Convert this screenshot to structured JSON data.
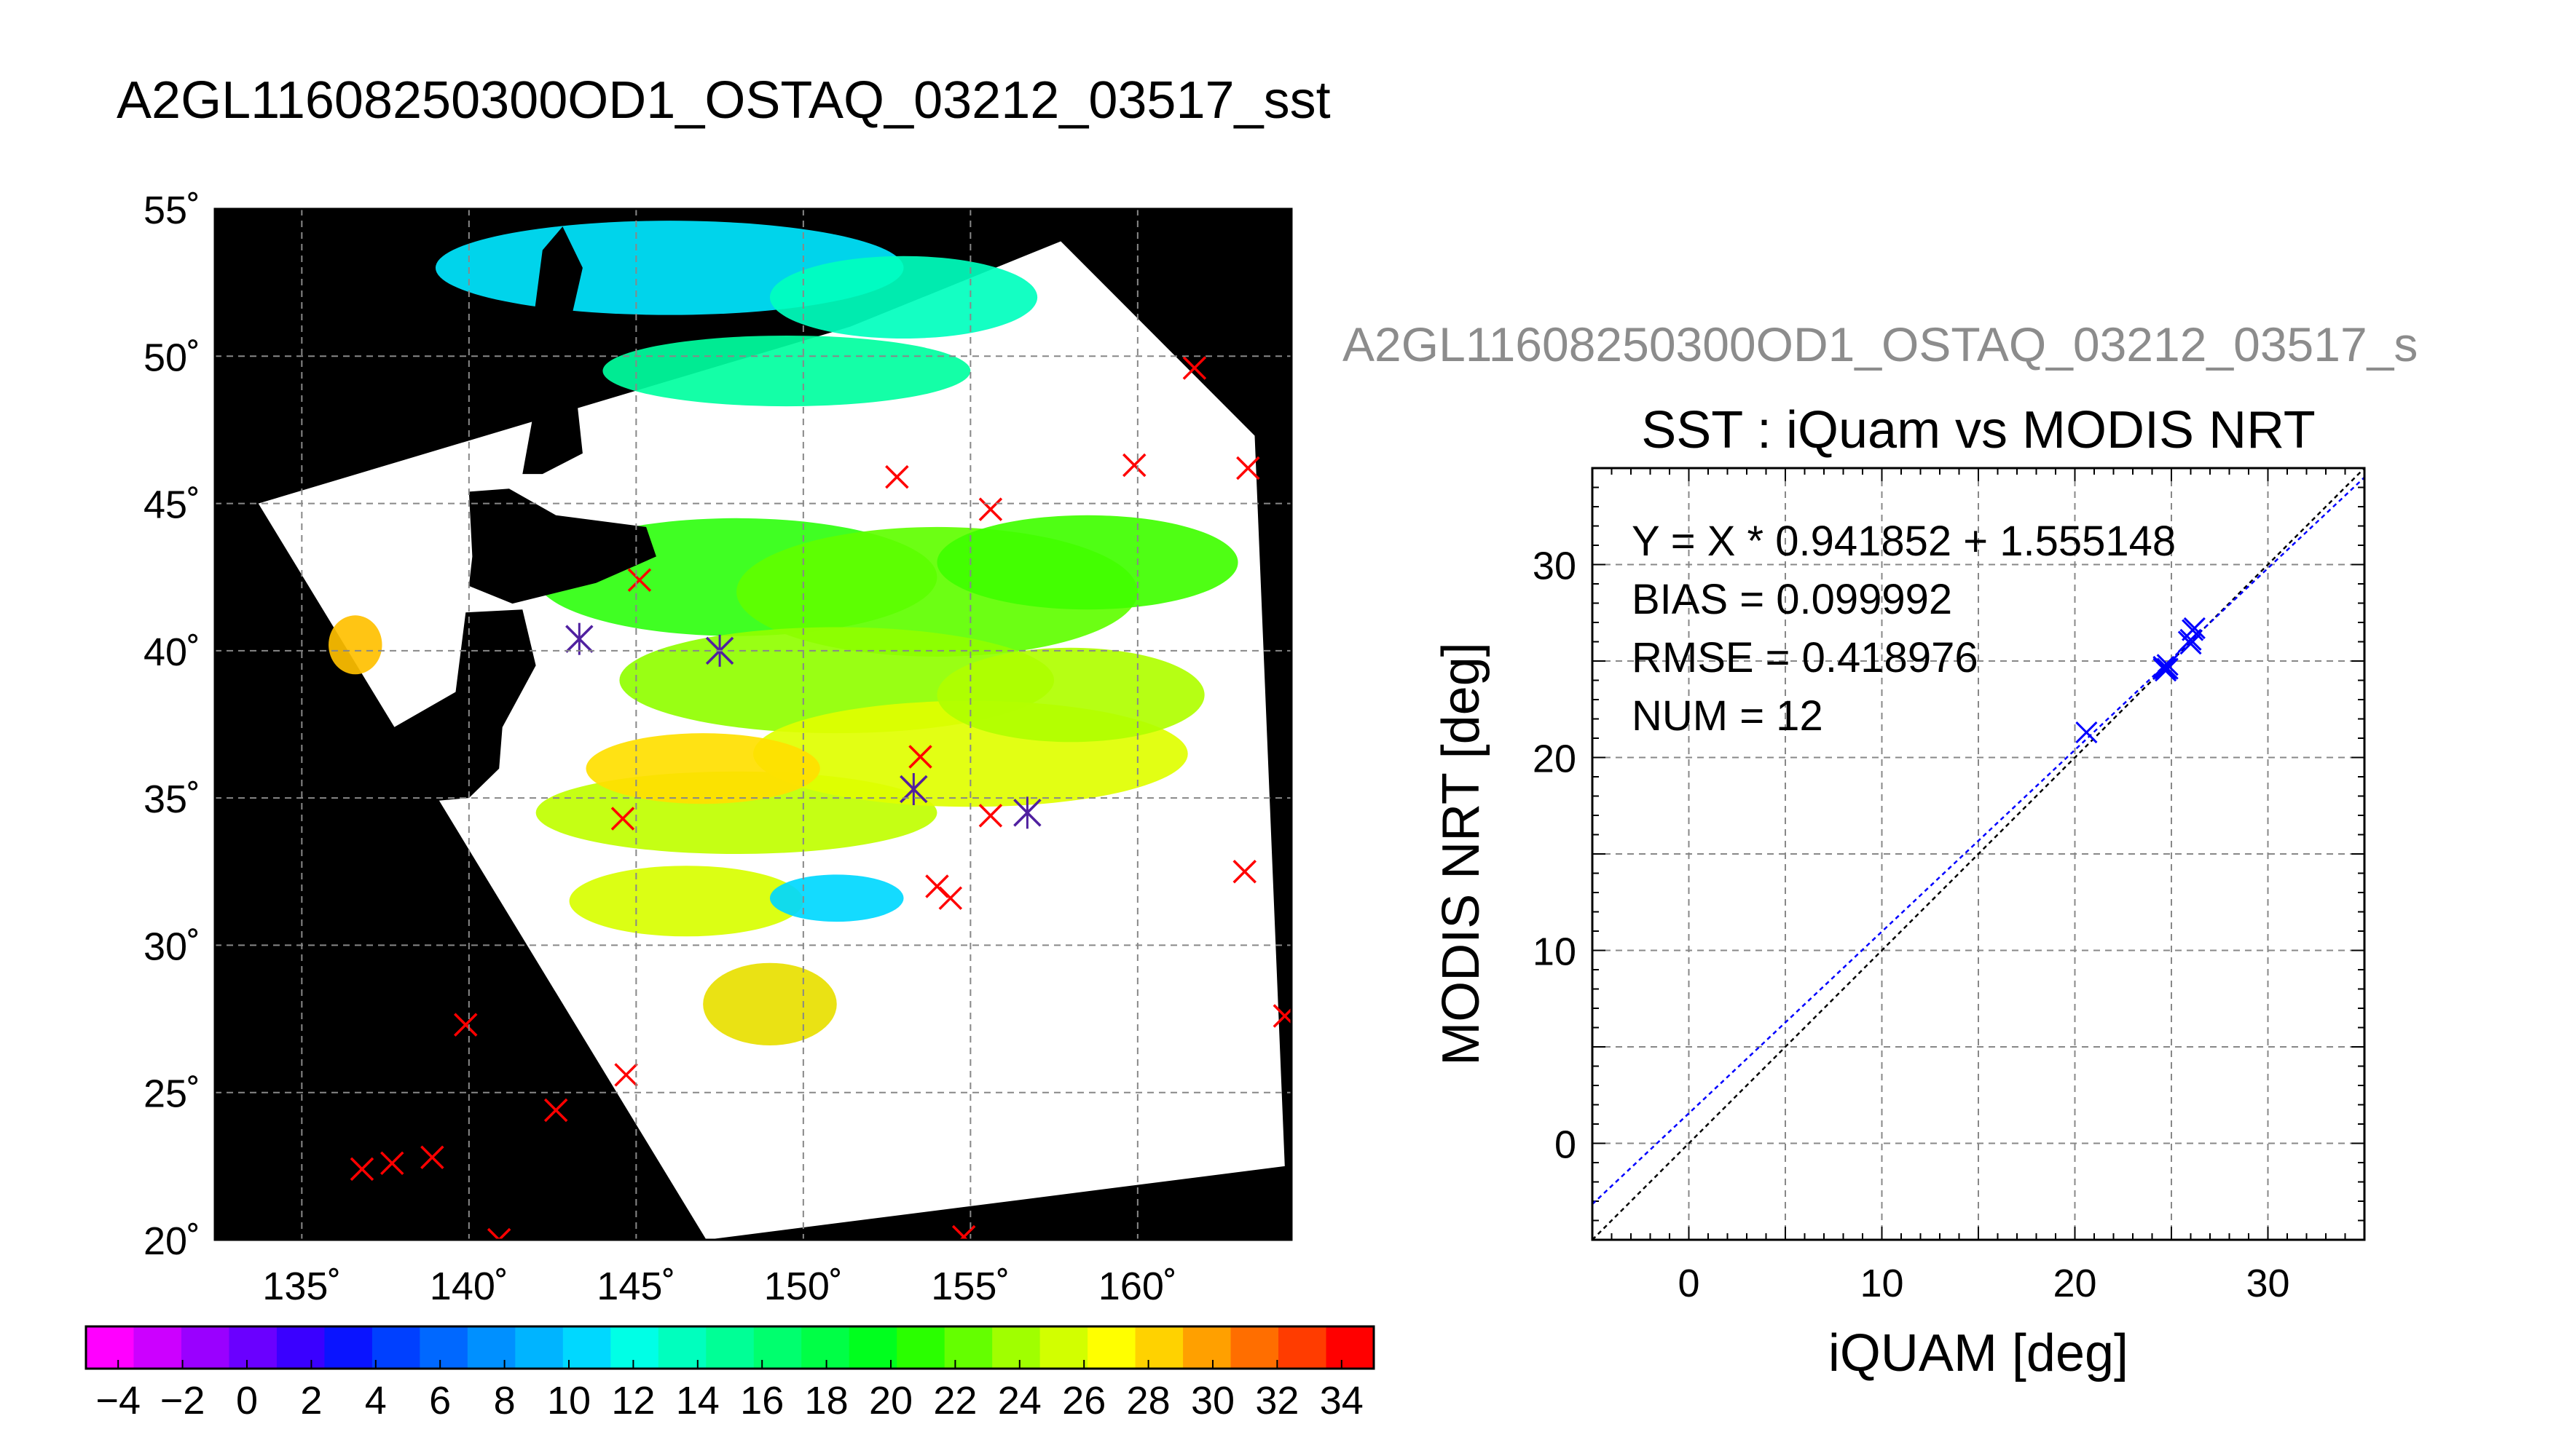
{
  "page": {
    "main_title": "A2GL11608250300OD1_OSTAQ_03212_03517_sst",
    "secondary_title": "A2GL11608250300OD1_OSTAQ_03212_03517_s"
  },
  "chart_data": [
    {
      "type": "map",
      "title": "A2GL11608250300OD1_OSTAQ_03212_03517_sst",
      "lon_range": [
        132.4,
        164.6
      ],
      "lat_range": [
        20,
        55
      ],
      "lon_ticks": [
        135,
        140,
        145,
        150,
        155,
        160
      ],
      "lat_ticks": [
        20,
        25,
        30,
        35,
        40,
        45,
        50,
        55
      ],
      "lon_tick_labels": [
        "135˚",
        "140˚",
        "145˚",
        "150˚",
        "155˚",
        "160˚"
      ],
      "lat_tick_labels": [
        "20˚",
        "25˚",
        "30˚",
        "35˚",
        "40˚",
        "45˚",
        "50˚",
        "55˚"
      ],
      "grid": true,
      "background_color": "#000000",
      "swath_color": "#ffffff",
      "swath_corners_lonlat": [
        [
          133.7,
          45.0
        ],
        [
          151.4,
          51.0
        ],
        [
          157.7,
          53.9
        ],
        [
          163.5,
          47.3
        ],
        [
          164.4,
          22.5
        ],
        [
          147.1,
          20.0
        ]
      ],
      "match_points_red": [
        [
          161.7,
          49.6
        ],
        [
          163.3,
          46.2
        ],
        [
          159.9,
          46.3
        ],
        [
          152.8,
          45.9
        ],
        [
          155.6,
          44.8
        ],
        [
          145.1,
          42.4
        ],
        [
          153.5,
          36.4
        ],
        [
          153.3,
          35.3
        ],
        [
          155.6,
          34.4
        ],
        [
          144.6,
          34.3
        ],
        [
          154.0,
          32.0
        ],
        [
          154.4,
          31.6
        ],
        [
          163.2,
          32.5
        ],
        [
          164.4,
          27.6
        ],
        [
          139.9,
          27.3
        ],
        [
          144.7,
          25.6
        ],
        [
          142.6,
          24.4
        ],
        [
          136.8,
          22.4
        ],
        [
          137.7,
          22.6
        ],
        [
          138.9,
          22.8
        ],
        [
          140.9,
          20.0
        ],
        [
          154.8,
          20.1
        ]
      ],
      "match_points_blue": [
        [
          143.3,
          40.4
        ],
        [
          147.5,
          40.0
        ],
        [
          153.3,
          35.3
        ],
        [
          156.7,
          34.5
        ]
      ],
      "colorbar": {
        "min": -5,
        "max": 35,
        "tick_labels": [
          "−4",
          "−2",
          "0",
          "2",
          "4",
          "6",
          "8",
          "10",
          "12",
          "14",
          "16",
          "18",
          "20",
          "22",
          "24",
          "26",
          "28",
          "30",
          "32",
          "34"
        ],
        "tick_values": [
          -4,
          -2,
          0,
          2,
          4,
          6,
          8,
          10,
          12,
          14,
          16,
          18,
          20,
          22,
          24,
          26,
          28,
          30,
          32,
          34
        ],
        "colors": [
          "#ff00ff",
          "#cc00ff",
          "#9a00ff",
          "#6a00ff",
          "#3a00ff",
          "#0a14ff",
          "#0040ff",
          "#0068ff",
          "#0090ff",
          "#00b4ff",
          "#00d8ff",
          "#00ffe6",
          "#00ffbe",
          "#00ff96",
          "#00ff6e",
          "#00ff46",
          "#00ff1e",
          "#2aff00",
          "#64ff00",
          "#a0ff00",
          "#d2ff00",
          "#ffff00",
          "#ffd200",
          "#ffa000",
          "#ff6e00",
          "#ff3c00",
          "#ff0000"
        ]
      }
    },
    {
      "type": "scatter",
      "title": "SST : iQuam vs MODIS NRT",
      "xlabel": "iQUAM [deg]",
      "ylabel": "MODIS NRT [deg]",
      "xlim": [
        -5,
        35
      ],
      "ylim": [
        -5,
        35
      ],
      "x_ticks": [
        0,
        10,
        20,
        30
      ],
      "y_ticks": [
        0,
        10,
        20,
        30
      ],
      "x_tick_labels": [
        "0",
        "10",
        "20",
        "30"
      ],
      "y_tick_labels": [
        "0",
        "10",
        "20",
        "30"
      ],
      "grid": true,
      "annotations": [
        "Y = X * 0.941852 + 1.555148",
        "BIAS = 0.099992",
        "RMSE = 0.418976",
        "NUM = 12"
      ],
      "points": [
        [
          20.6,
          21.3
        ],
        [
          24.6,
          24.6
        ],
        [
          24.8,
          24.6
        ],
        [
          24.7,
          24.5
        ],
        [
          25.9,
          26.0
        ],
        [
          26.0,
          26.1
        ],
        [
          26.1,
          26.6
        ],
        [
          26.0,
          25.9
        ],
        [
          24.6,
          24.7
        ],
        [
          24.8,
          24.8
        ],
        [
          26.2,
          26.7
        ],
        [
          24.7,
          24.6
        ]
      ],
      "fit": {
        "slope": 0.941852,
        "intercept": 1.555148,
        "color": "#0000ff"
      },
      "identity_line_color": "#000000",
      "point_color": "#0000ff"
    }
  ]
}
